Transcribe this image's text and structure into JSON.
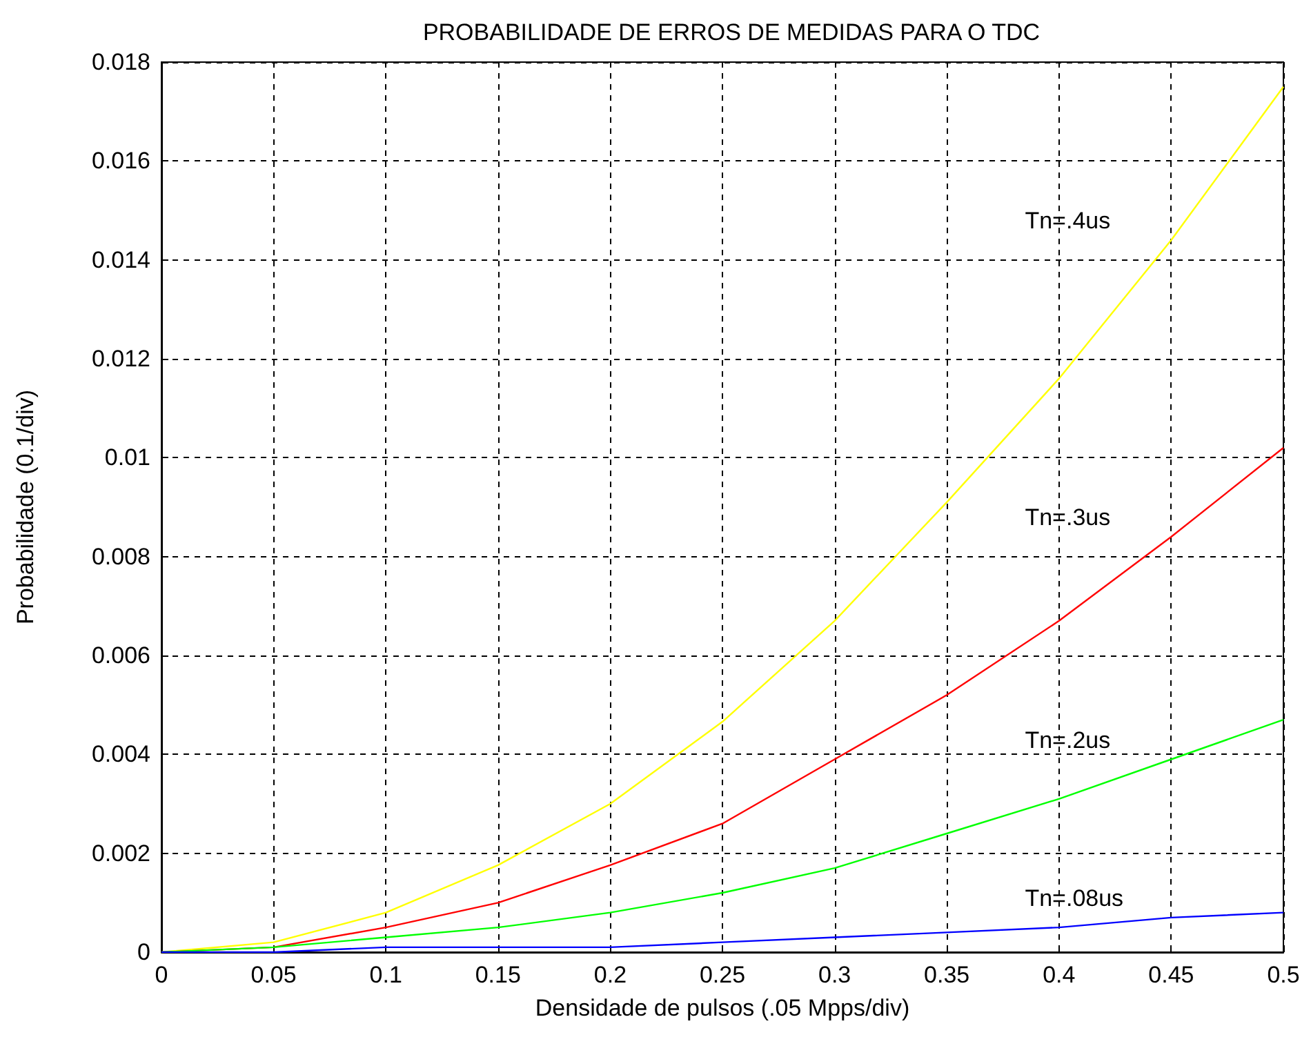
{
  "chart_data": {
    "type": "line",
    "title": "PROBABILIDADE DE ERROS DE MEDIDAS PARA O TDC",
    "xlabel": "Densidade de pulsos (.05 Mpps/div)",
    "ylabel": "Probabilidade (0.1/div)",
    "x": [
      0,
      0.05,
      0.1,
      0.15,
      0.2,
      0.25,
      0.3,
      0.35,
      0.4,
      0.45,
      0.5
    ],
    "series": [
      {
        "name": "Tn=.4us",
        "color": "#ffff00",
        "values": [
          0,
          0.0002,
          0.0008,
          0.00176,
          0.003,
          0.00466,
          0.0067,
          0.0091,
          0.0116,
          0.0144,
          0.0175
        ]
      },
      {
        "name": "Tn=.3us",
        "color": "#ff0000",
        "values": [
          0,
          0.0001,
          0.0005,
          0.001,
          0.00176,
          0.0026,
          0.0039,
          0.0052,
          0.0067,
          0.0084,
          0.0102
        ]
      },
      {
        "name": "Tn=.2us",
        "color": "#00ff00",
        "values": [
          0,
          0.0001,
          0.0003,
          0.0005,
          0.0008,
          0.0012,
          0.0017,
          0.0024,
          0.0031,
          0.0039,
          0.0047
        ]
      },
      {
        "name": "Tn=.08us",
        "color": "#0000ff",
        "values": [
          0,
          0,
          0.0001,
          0.0001,
          0.0001,
          0.0002,
          0.0003,
          0.0004,
          0.0005,
          0.0007,
          0.0008
        ]
      }
    ],
    "xlim": [
      0,
      0.5
    ],
    "ylim": [
      0,
      0.018
    ],
    "xticks": [
      0,
      0.05,
      0.1,
      0.15,
      0.2,
      0.25,
      0.3,
      0.35,
      0.4,
      0.45,
      0.5
    ],
    "yticks": [
      0,
      0.002,
      0.004,
      0.006,
      0.008,
      0.01,
      0.012,
      0.014,
      0.016,
      0.018
    ],
    "grid": true
  }
}
